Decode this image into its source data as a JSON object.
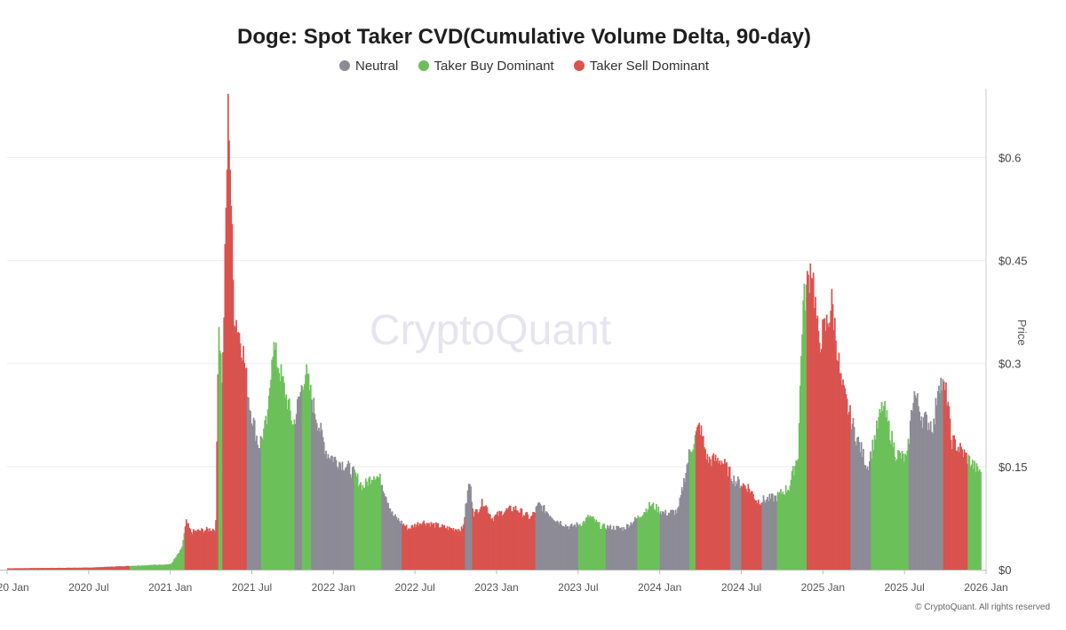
{
  "colors": {
    "neutral": "#8c8b96",
    "buy": "#6cc05a",
    "sell": "#d9534f",
    "grid": "#eeeeee",
    "axis": "#cccccc",
    "watermark": "#e6e4ee"
  },
  "watermark": "CryptoQuant",
  "copyright": "© CryptoQuant. All rights reserved",
  "chart_data": {
    "type": "bar",
    "title": "Doge: Spot Taker CVD(Cumulative Volume Delta, 90-day)",
    "legend": [
      {
        "name": "Neutral",
        "key": "neutral"
      },
      {
        "name": "Taker Buy Dominant",
        "key": "buy"
      },
      {
        "name": "Taker Sell Dominant",
        "key": "sell"
      }
    ],
    "legend_position": "top-center",
    "ylabel": "Price",
    "y_axis_side": "right",
    "ylim": [
      0,
      0.7
    ],
    "y_ticks": [
      0,
      0.15,
      0.3,
      0.45,
      0.6
    ],
    "y_tick_labels": [
      "$0",
      "$0.15",
      "$0.3",
      "$0.45",
      "$0.6"
    ],
    "x_tick_labels": [
      "2020 Jan",
      "2020 Jul",
      "2021 Jan",
      "2021 Jul",
      "2022 Jan",
      "2022 Jul",
      "2023 Jan",
      "2023 Jul",
      "2024 Jan",
      "2024 Jul",
      "2025 Jan",
      "2025 Jul",
      "2026 Jan"
    ],
    "x_range": [
      "2020-01",
      "2026-01"
    ],
    "grid": "horizontal",
    "price_points": [
      [
        "2020-01",
        0.002
      ],
      [
        "2020-07",
        0.003
      ],
      [
        "2021-01",
        0.008
      ],
      [
        "2021-01-25",
        0.03
      ],
      [
        "2021-02-05",
        0.07
      ],
      [
        "2021-02-15",
        0.055
      ],
      [
        "2021-04-10",
        0.06
      ],
      [
        "2021-04-16",
        0.37
      ],
      [
        "2021-04-25",
        0.27
      ],
      [
        "2021-05-08",
        0.69
      ],
      [
        "2021-05-20",
        0.38
      ],
      [
        "2021-06-10",
        0.32
      ],
      [
        "2021-06-25",
        0.24
      ],
      [
        "2021-07-15",
        0.18
      ],
      [
        "2021-08-05",
        0.22
      ],
      [
        "2021-08-15",
        0.33
      ],
      [
        "2021-09-05",
        0.28
      ],
      [
        "2021-10-01",
        0.21
      ],
      [
        "2021-10-28",
        0.29
      ],
      [
        "2021-11-15",
        0.24
      ],
      [
        "2021-12-15",
        0.17
      ],
      [
        "2022-01-05",
        0.16
      ],
      [
        "2022-02-01",
        0.15
      ],
      [
        "2022-02-15",
        0.14
      ],
      [
        "2022-03-05",
        0.12
      ],
      [
        "2022-03-30",
        0.14
      ],
      [
        "2022-04-15",
        0.13
      ],
      [
        "2022-05-10",
        0.08
      ],
      [
        "2022-06-15",
        0.06
      ],
      [
        "2022-07-15",
        0.07
      ],
      [
        "2022-08-15",
        0.065
      ],
      [
        "2022-09-15",
        0.06
      ],
      [
        "2022-10-15",
        0.059
      ],
      [
        "2022-10-30",
        0.13
      ],
      [
        "2022-11-10",
        0.08
      ],
      [
        "2022-12-01",
        0.1
      ],
      [
        "2022-12-20",
        0.075
      ],
      [
        "2023-01-15",
        0.085
      ],
      [
        "2023-02-10",
        0.09
      ],
      [
        "2023-03-15",
        0.075
      ],
      [
        "2023-04-03",
        0.095
      ],
      [
        "2023-05-10",
        0.073
      ],
      [
        "2023-06-10",
        0.062
      ],
      [
        "2023-07-10",
        0.068
      ],
      [
        "2023-07-25",
        0.078
      ],
      [
        "2023-08-20",
        0.063
      ],
      [
        "2023-10-10",
        0.06
      ],
      [
        "2023-11-10",
        0.075
      ],
      [
        "2023-12-10",
        0.095
      ],
      [
        "2024-01-10",
        0.082
      ],
      [
        "2024-02-10",
        0.085
      ],
      [
        "2024-03-05",
        0.17
      ],
      [
        "2024-03-28",
        0.21
      ],
      [
        "2024-04-15",
        0.16
      ],
      [
        "2024-05-15",
        0.16
      ],
      [
        "2024-06-15",
        0.13
      ],
      [
        "2024-07-15",
        0.12
      ],
      [
        "2024-08-05",
        0.1
      ],
      [
        "2024-09-15",
        0.105
      ],
      [
        "2024-10-15",
        0.12
      ],
      [
        "2024-11-05",
        0.17
      ],
      [
        "2024-11-15",
        0.38
      ],
      [
        "2024-12-05",
        0.45
      ],
      [
        "2024-12-20",
        0.33
      ],
      [
        "2025-01-10",
        0.36
      ],
      [
        "2025-01-20",
        0.39
      ],
      [
        "2025-02-10",
        0.27
      ],
      [
        "2025-03-10",
        0.2
      ],
      [
        "2025-04-08",
        0.15
      ],
      [
        "2025-05-12",
        0.24
      ],
      [
        "2025-06-10",
        0.17
      ],
      [
        "2025-07-05",
        0.16
      ],
      [
        "2025-07-20",
        0.26
      ],
      [
        "2025-08-10",
        0.22
      ],
      [
        "2025-09-05",
        0.21
      ],
      [
        "2025-09-15",
        0.28
      ],
      [
        "2025-10-05",
        0.25
      ],
      [
        "2025-10-12",
        0.19
      ],
      [
        "2025-11-10",
        0.17
      ],
      [
        "2025-12-10",
        0.145
      ]
    ],
    "regimes": [
      {
        "start": "2020-01",
        "end": "2020-10",
        "state": "sell"
      },
      {
        "start": "2020-10",
        "end": "2021-01",
        "state": "buy"
      },
      {
        "start": "2021-01",
        "end": "2021-02-01",
        "state": "buy"
      },
      {
        "start": "2021-02-01",
        "end": "2021-04-15",
        "state": "sell"
      },
      {
        "start": "2021-04-15",
        "end": "2021-04-24",
        "state": "buy"
      },
      {
        "start": "2021-04-24",
        "end": "2021-06-20",
        "state": "sell"
      },
      {
        "start": "2021-06-20",
        "end": "2021-07-20",
        "state": "neutral"
      },
      {
        "start": "2021-07-20",
        "end": "2021-10-05",
        "state": "buy"
      },
      {
        "start": "2021-10-05",
        "end": "2021-10-20",
        "state": "neutral"
      },
      {
        "start": "2021-10-20",
        "end": "2021-11-10",
        "state": "buy"
      },
      {
        "start": "2021-11-10",
        "end": "2022-02-15",
        "state": "neutral"
      },
      {
        "start": "2022-02-15",
        "end": "2022-04-15",
        "state": "buy"
      },
      {
        "start": "2022-04-15",
        "end": "2022-06-01",
        "state": "neutral"
      },
      {
        "start": "2022-06-01",
        "end": "2022-10-20",
        "state": "sell"
      },
      {
        "start": "2022-10-20",
        "end": "2022-11-05",
        "state": "neutral"
      },
      {
        "start": "2022-11-05",
        "end": "2023-03-25",
        "state": "sell"
      },
      {
        "start": "2023-03-25",
        "end": "2023-07-01",
        "state": "neutral"
      },
      {
        "start": "2023-07-01",
        "end": "2023-09-01",
        "state": "buy"
      },
      {
        "start": "2023-09-01",
        "end": "2023-11-10",
        "state": "neutral"
      },
      {
        "start": "2023-11-10",
        "end": "2024-01-01",
        "state": "buy"
      },
      {
        "start": "2024-01-01",
        "end": "2024-03-05",
        "state": "neutral"
      },
      {
        "start": "2024-03-05",
        "end": "2024-03-20",
        "state": "buy"
      },
      {
        "start": "2024-03-20",
        "end": "2024-06-05",
        "state": "sell"
      },
      {
        "start": "2024-06-05",
        "end": "2024-07-01",
        "state": "neutral"
      },
      {
        "start": "2024-07-01",
        "end": "2024-08-15",
        "state": "sell"
      },
      {
        "start": "2024-08-15",
        "end": "2024-09-20",
        "state": "neutral"
      },
      {
        "start": "2024-09-20",
        "end": "2024-11-10",
        "state": "buy"
      },
      {
        "start": "2024-11-10",
        "end": "2024-11-25",
        "state": "buy"
      },
      {
        "start": "2024-11-25",
        "end": "2025-03-01",
        "state": "sell"
      },
      {
        "start": "2025-03-01",
        "end": "2025-04-15",
        "state": "neutral"
      },
      {
        "start": "2025-04-15",
        "end": "2025-07-10",
        "state": "buy"
      },
      {
        "start": "2025-07-10",
        "end": "2025-09-25",
        "state": "neutral"
      },
      {
        "start": "2025-09-25",
        "end": "2025-11-20",
        "state": "sell"
      },
      {
        "start": "2025-11-20",
        "end": "2025-12-20",
        "state": "buy"
      }
    ]
  }
}
